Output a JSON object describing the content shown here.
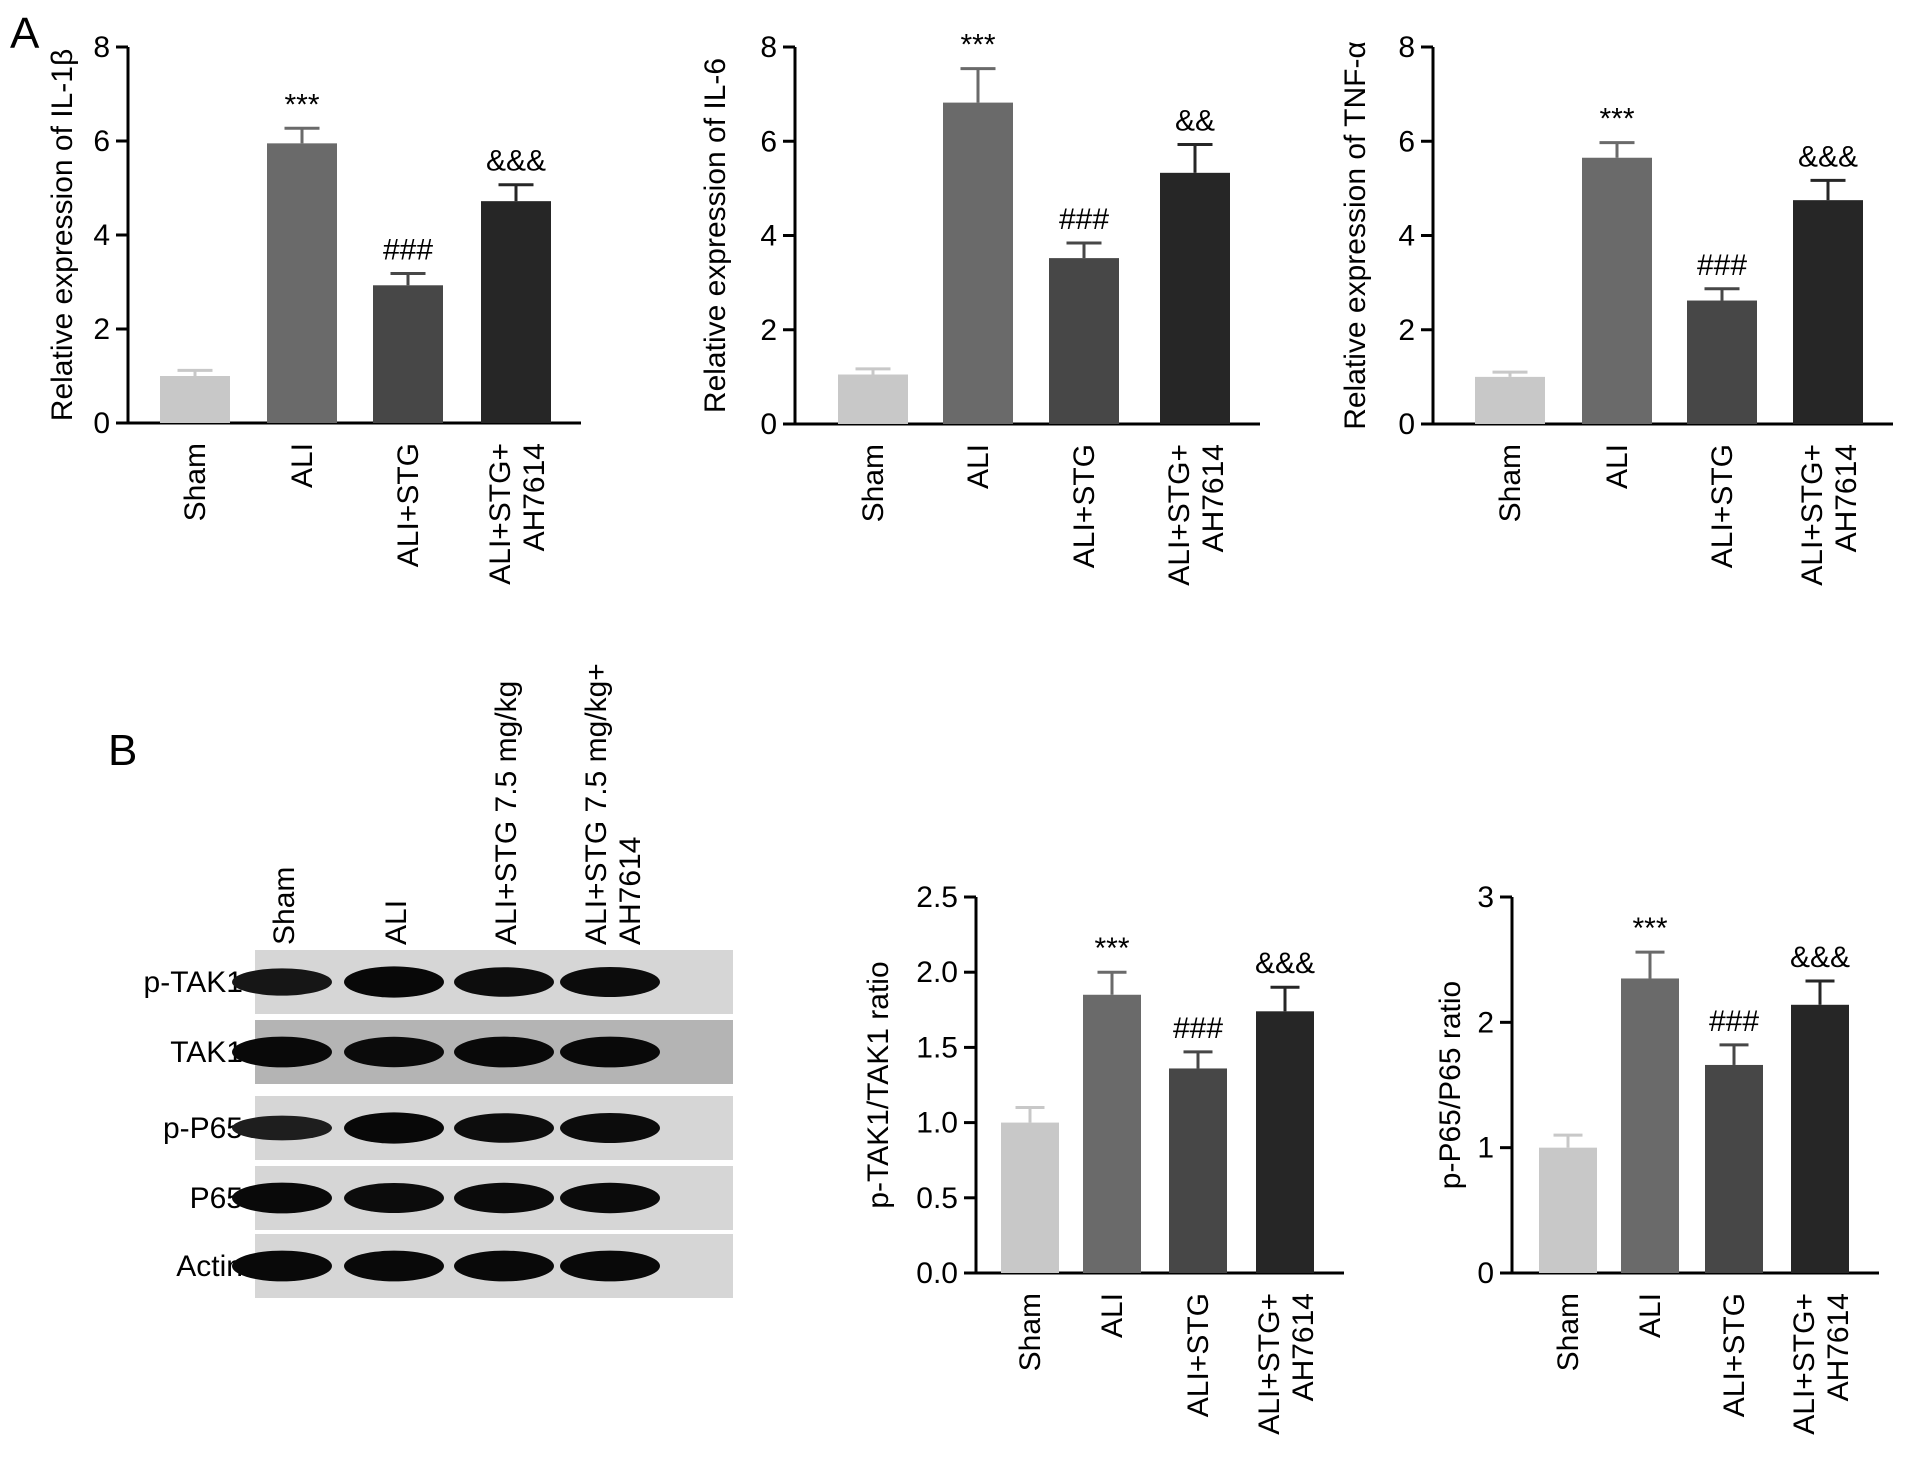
{
  "panels": {
    "A": {
      "label": "A"
    },
    "B": {
      "label": "B"
    }
  },
  "colors": {
    "Sham": "#c8c8c8",
    "ALI": "#6a6a6a",
    "ALI+STG": "#474747",
    "ALI+STG+AH7614": "#262626"
  },
  "blot": {
    "lanes": [
      "Sham",
      "ALI",
      "ALI+STG 7.5 mg/kg",
      "ALI+STG 7.5 mg/kg+\nAH7614"
    ],
    "rows": [
      "p-TAK1",
      "TAK1",
      "p-P65",
      "P65",
      "Actin"
    ],
    "band_intensity": [
      [
        0.7,
        0.95,
        0.85,
        0.88
      ],
      [
        0.92,
        0.9,
        0.92,
        0.92
      ],
      [
        0.55,
        0.95,
        0.85,
        0.88
      ],
      [
        0.92,
        0.88,
        0.9,
        0.9
      ],
      [
        0.92,
        0.92,
        0.92,
        0.92
      ]
    ]
  },
  "chart_data": [
    {
      "type": "bar",
      "panel": "A",
      "categories": [
        "Sham",
        "ALI",
        "ALI+STG",
        "ALI+STG+\nAH7614"
      ],
      "values": [
        1.0,
        5.95,
        2.93,
        4.72
      ],
      "errors": [
        0.12,
        0.32,
        0.25,
        0.35
      ],
      "annotations": [
        "",
        "***",
        "###",
        "&&&"
      ],
      "ylabel": "Relative expression of IL-1β",
      "ylim": [
        0,
        8
      ],
      "yticks": [
        "0",
        "2",
        "4",
        "6",
        "8"
      ]
    },
    {
      "type": "bar",
      "panel": "A",
      "categories": [
        "Sham",
        "ALI",
        "ALI+STG",
        "ALI+STG+\nAH7614"
      ],
      "values": [
        1.05,
        6.82,
        3.52,
        5.33
      ],
      "errors": [
        0.12,
        0.72,
        0.32,
        0.6
      ],
      "annotations": [
        "",
        "***",
        "###",
        "&&"
      ],
      "ylabel": "Relative expression of IL-6",
      "ylim": [
        0,
        8
      ],
      "yticks": [
        "0",
        "2",
        "4",
        "6",
        "8"
      ]
    },
    {
      "type": "bar",
      "panel": "A",
      "categories": [
        "Sham",
        "ALI",
        "ALI+STG",
        "ALI+STG+\nAH7614"
      ],
      "values": [
        1.0,
        5.65,
        2.62,
        4.75
      ],
      "errors": [
        0.1,
        0.32,
        0.25,
        0.42
      ],
      "annotations": [
        "",
        "***",
        "###",
        "&&&"
      ],
      "ylabel": "Relative expression of TNF-α",
      "ylim": [
        0,
        8
      ],
      "yticks": [
        "0",
        "2",
        "4",
        "6",
        "8"
      ]
    },
    {
      "type": "bar",
      "panel": "B",
      "categories": [
        "Sham",
        "ALI",
        "ALI+STG",
        "ALI+STG+\nAH7614"
      ],
      "values": [
        1.0,
        1.85,
        1.36,
        1.74
      ],
      "errors": [
        0.1,
        0.15,
        0.11,
        0.16
      ],
      "annotations": [
        "",
        "***",
        "###",
        "&&&"
      ],
      "ylabel": "p-TAK1/TAK1 ratio",
      "ylim": [
        0,
        2.5
      ],
      "yticks": [
        "0.0",
        "0.5",
        "1.0",
        "1.5",
        "2.0",
        "2.5"
      ]
    },
    {
      "type": "bar",
      "panel": "B",
      "categories": [
        "Sham",
        "ALI",
        "ALI+STG",
        "ALI+STG+\nAH7614"
      ],
      "values": [
        1.0,
        2.35,
        1.66,
        2.14
      ],
      "errors": [
        0.1,
        0.21,
        0.16,
        0.19
      ],
      "annotations": [
        "",
        "***",
        "###",
        "&&&"
      ],
      "ylabel": "p-P65/P65 ratio",
      "ylim": [
        0,
        3
      ],
      "yticks": [
        "0",
        "1",
        "2",
        "3"
      ]
    }
  ]
}
